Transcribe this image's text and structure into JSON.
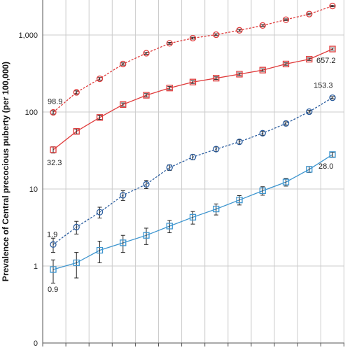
{
  "chart_data": {
    "type": "line",
    "title": "",
    "xlabel": "",
    "ylabel": "Prevalence of Central precocious puberty (per 100,000)",
    "yscale": "log",
    "ylim": [
      0.1,
      10000
    ],
    "yticks": [
      {
        "value": 0.1,
        "label": "0"
      },
      {
        "value": 1,
        "label": "1"
      },
      {
        "value": 10,
        "label": "10"
      },
      {
        "value": 100,
        "label": "100"
      },
      {
        "value": 1000,
        "label": "1,000"
      }
    ],
    "grid": true,
    "colors": {
      "red": "#e03c3c",
      "blue": "#2d5fa0",
      "light_blue": "#3d95cf",
      "grid": "#cccccc",
      "axis": "#555555"
    },
    "x": [
      1,
      2,
      3,
      4,
      5,
      6,
      7,
      8,
      9,
      10,
      11,
      12,
      13
    ],
    "series": [
      {
        "color": "#e03c3c",
        "dashed": true,
        "marker": "circle",
        "values": [
          98.9,
          180,
          270,
          420,
          580,
          780,
          910,
          1010,
          1150,
          1330,
          1580,
          1870,
          2380
        ],
        "errors": [
          5,
          8,
          10,
          14,
          18,
          22,
          25,
          27,
          30,
          33,
          38,
          42,
          50
        ]
      },
      {
        "color": "#e03c3c",
        "dashed": false,
        "marker": "square",
        "values": [
          32.3,
          56,
          85,
          125,
          165,
          205,
          245,
          275,
          310,
          350,
          420,
          485,
          657.2
        ],
        "errors": [
          3,
          4,
          5,
          6,
          8,
          9,
          10,
          11,
          12,
          13,
          15,
          17,
          20
        ]
      },
      {
        "color": "#2d5fa0",
        "dashed": true,
        "marker": "circle",
        "values": [
          1.9,
          3.2,
          5.0,
          8.3,
          11.5,
          19.0,
          26.0,
          33.0,
          41.0,
          53.0,
          71.0,
          101.0,
          153.3
        ],
        "errors": [
          0.4,
          0.6,
          0.8,
          1.2,
          1.4,
          1.6,
          2.0,
          2.2,
          2.5,
          3.0,
          3.5,
          4.0,
          5.0
        ]
      },
      {
        "color": "#3d95cf",
        "dashed": false,
        "marker": "square",
        "values": [
          0.9,
          1.1,
          1.6,
          2.0,
          2.5,
          3.3,
          4.3,
          5.5,
          7.2,
          9.5,
          12.3,
          18.0,
          28.0
        ],
        "errors": [
          0.3,
          0.4,
          0.5,
          0.5,
          0.6,
          0.6,
          0.8,
          0.9,
          1.0,
          1.2,
          1.4,
          1.6,
          2.0
        ]
      }
    ],
    "annotations": [
      {
        "series": 0,
        "point": 0,
        "text": "98.9"
      },
      {
        "series": 1,
        "point": 0,
        "text": "32.3"
      },
      {
        "series": 1,
        "point": 12,
        "text": "657.2"
      },
      {
        "series": 2,
        "point": 0,
        "text": "1.9"
      },
      {
        "series": 2,
        "point": 12,
        "text": "153.3"
      },
      {
        "series": 3,
        "point": 0,
        "text": "0.9"
      },
      {
        "series": 3,
        "point": 12,
        "text": "28.0"
      }
    ]
  }
}
